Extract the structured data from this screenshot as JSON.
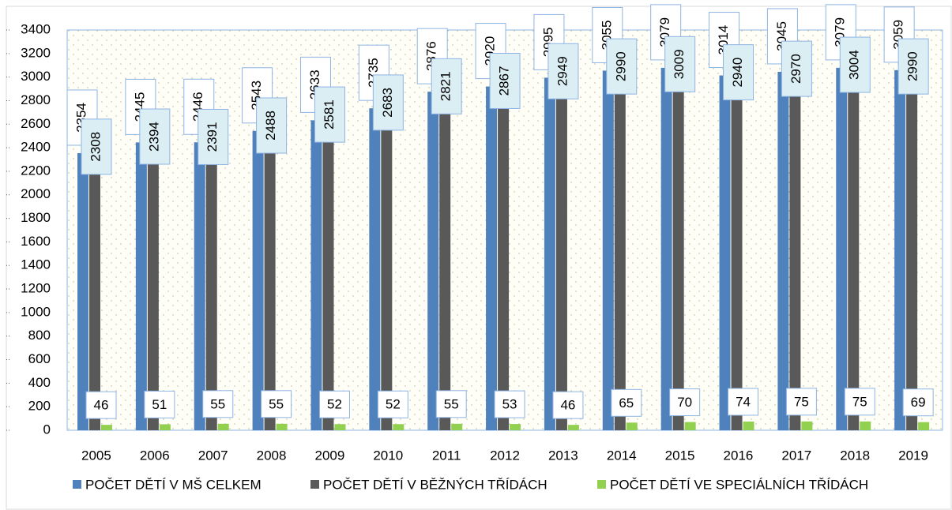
{
  "chart_data": {
    "type": "bar",
    "categories": [
      "2005",
      "2006",
      "2007",
      "2008",
      "2009",
      "2010",
      "2011",
      "2012",
      "2013",
      "2014",
      "2015",
      "2016",
      "2017",
      "2018",
      "2019"
    ],
    "series": [
      {
        "name": "POČET DĚTÍ V MŠ CELKEM",
        "color": "#4f81bd",
        "values": [
          2354,
          2445,
          2446,
          2543,
          2633,
          2735,
          2876,
          2920,
          2995,
          3055,
          3079,
          3014,
          3045,
          3079,
          3059
        ]
      },
      {
        "name": "POČET DĚTÍ V BĚŽNÝCH TŘÍDÁCH",
        "color": "#595959",
        "values": [
          2308,
          2394,
          2391,
          2488,
          2581,
          2683,
          2821,
          2867,
          2949,
          2990,
          3009,
          2940,
          2970,
          3004,
          2990
        ]
      },
      {
        "name": "POČET DĚTÍ VE SPECIÁLNÍCH TŘÍDÁCH",
        "color": "#92d050",
        "values": [
          46,
          51,
          55,
          55,
          52,
          52,
          55,
          53,
          46,
          65,
          70,
          74,
          75,
          75,
          69
        ]
      }
    ],
    "ylim": [
      0,
      3400
    ],
    "yticks": [
      0,
      200,
      400,
      600,
      800,
      1000,
      1200,
      1400,
      1600,
      1800,
      2000,
      2200,
      2400,
      2600,
      2800,
      3000,
      3200,
      3400
    ],
    "grid": false,
    "legend": "bottom"
  }
}
